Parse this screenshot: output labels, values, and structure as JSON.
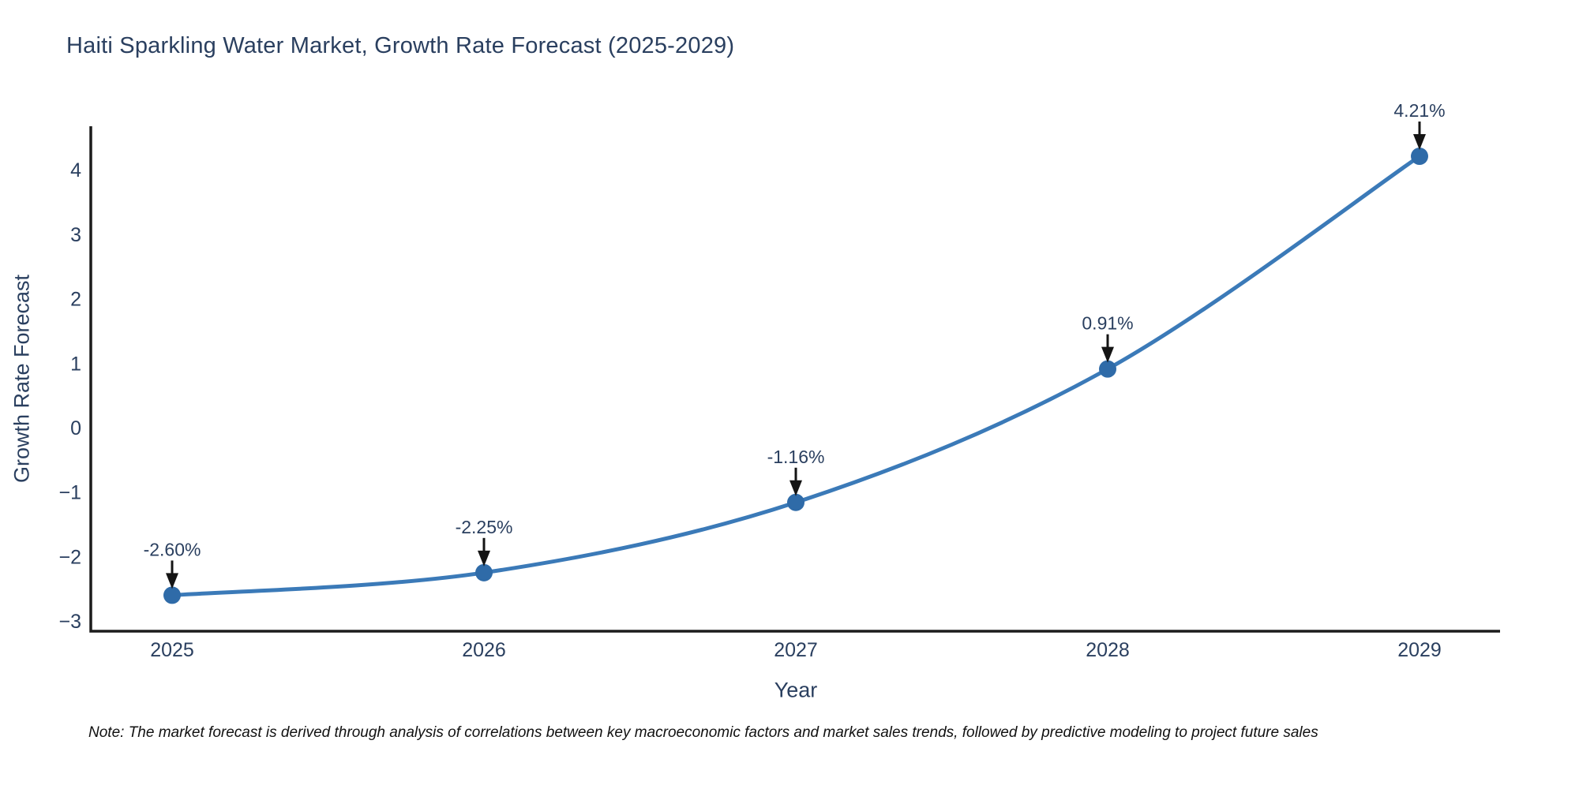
{
  "title": "Haiti Sparkling Water Market, Growth Rate Forecast (2025-2029)",
  "note": "Note: The market forecast is derived through analysis of correlations between key macroeconomic factors and market sales trends, followed by predictive modeling to project future sales",
  "chart_data": {
    "type": "line",
    "curve": "spline",
    "title": "Haiti Sparkling Water Market, Growth Rate Forecast (2025-2029)",
    "xlabel": "Year",
    "ylabel": "Growth Rate Forecast",
    "x": [
      "2025",
      "2026",
      "2027",
      "2028",
      "2029"
    ],
    "series": [
      {
        "name": "Growth Rate Forecast",
        "values": [
          -2.6,
          -2.25,
          -1.16,
          0.91,
          4.21
        ]
      }
    ],
    "point_labels": [
      "-2.60%",
      "-2.25%",
      "-1.16%",
      "0.91%",
      "4.21%"
    ],
    "yticks": [
      4,
      3,
      2,
      1,
      0,
      -1,
      -2,
      -3
    ],
    "ytick_labels": [
      "4",
      "3",
      "2",
      "1",
      "0",
      "−1",
      "−2",
      "−3"
    ],
    "ylim": [
      -3.16,
      4.68
    ],
    "grid": false,
    "legend": "none",
    "colors": {
      "line": "#3b7ab8",
      "marker": "#2f6ba8",
      "axis": "#1c1c1c",
      "text": "#2a3f5f",
      "annotation_text": "#2a3f5f",
      "arrow": "#141414",
      "background": "#ffffff"
    }
  }
}
